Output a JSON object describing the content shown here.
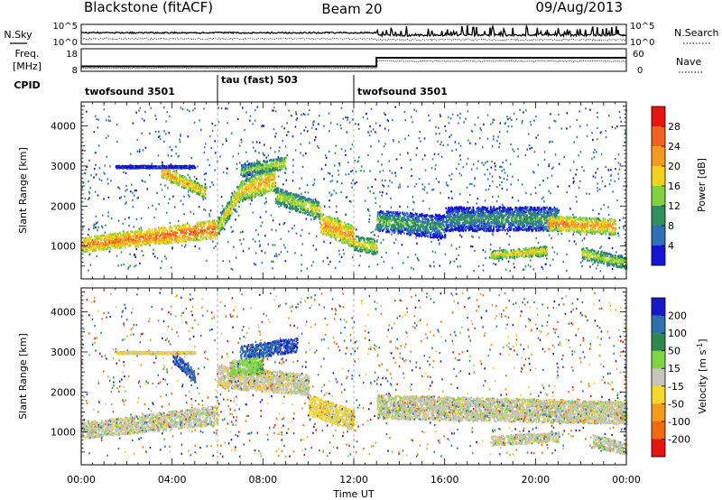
{
  "header": {
    "radar": "Blackstone (fitACF)",
    "beam": "Beam 20",
    "date": "09/Aug/2013"
  },
  "sky_panel": {
    "left_label": "N.Sky",
    "right_label": "N.Search",
    "ticks_left": [
      "10^5",
      "10^0"
    ],
    "ticks_right": [
      "10^5",
      "10^0"
    ]
  },
  "freq_panel": {
    "left_label": "Freq.",
    "units": "[MHz]",
    "right_label": "Nave",
    "ticks_left": [
      "18",
      "8"
    ],
    "ticks_right": [
      "60",
      "0"
    ]
  },
  "cpid": {
    "label": "CPID",
    "segments": [
      {
        "name": "twofsound 3501",
        "start": 0,
        "end": 6
      },
      {
        "name": "tau (fast) 503",
        "start": 6,
        "end": 12
      },
      {
        "name": "twofsound 3501",
        "start": 12,
        "end": 24
      }
    ]
  },
  "chart_data": [
    {
      "type": "heatmap",
      "quantity": "power",
      "ylabel": "Slant Range [km]",
      "xlim": [
        0,
        24
      ],
      "ylim": [
        180,
        4600
      ],
      "yticks": [
        1000,
        2000,
        3000,
        4000
      ],
      "colorbar": {
        "label": "Power [dB]",
        "ticks": [
          4,
          8,
          12,
          16,
          20,
          24,
          28
        ],
        "range": [
          0,
          32
        ]
      },
      "bands": [
        {
          "t": [
            0.0,
            6.0
          ],
          "r0": [
            1050,
            1450
          ],
          "w": [
            180,
            230
          ],
          "v": [
            24,
            26
          ]
        },
        {
          "t": [
            6.0,
            7.0
          ],
          "r0": [
            1500,
            2400
          ],
          "w": [
            220,
            260
          ],
          "v": [
            18,
            20
          ]
        },
        {
          "t": [
            7.0,
            8.5
          ],
          "r0": [
            2400,
            2700
          ],
          "w": [
            260,
            300
          ],
          "v": [
            20,
            22
          ]
        },
        {
          "t": [
            8.5,
            10.5
          ],
          "r0": [
            2300,
            1900
          ],
          "w": [
            200,
            230
          ],
          "v": [
            16,
            18
          ]
        },
        {
          "t": [
            10.5,
            12.0
          ],
          "r0": [
            1600,
            1250
          ],
          "w": [
            250,
            280
          ],
          "v": [
            24,
            22
          ]
        },
        {
          "t": [
            12.0,
            13.0
          ],
          "r0": [
            1100,
            1000
          ],
          "w": [
            180,
            200
          ],
          "v": [
            18,
            18
          ]
        },
        {
          "t": [
            13.0,
            16.0
          ],
          "r0": [
            1650,
            1500
          ],
          "w": [
            250,
            300
          ],
          "v": [
            14,
            10
          ]
        },
        {
          "t": [
            16.0,
            21.0
          ],
          "r0": [
            1700,
            1700
          ],
          "w": [
            300,
            300
          ],
          "v": [
            10,
            12
          ]
        },
        {
          "t": [
            18.0,
            20.5
          ],
          "r0": [
            800,
            900
          ],
          "w": [
            100,
            120
          ],
          "v": [
            20,
            20
          ]
        },
        {
          "t": [
            20.5,
            23.5
          ],
          "r0": [
            1600,
            1500
          ],
          "w": [
            180,
            200
          ],
          "v": [
            24,
            22
          ]
        },
        {
          "t": [
            22.0,
            24.0
          ],
          "r0": [
            850,
            600
          ],
          "w": [
            150,
            150
          ],
          "v": [
            18,
            16
          ]
        },
        {
          "t": [
            3.5,
            5.5
          ],
          "r0": [
            2900,
            2350
          ],
          "w": [
            150,
            150
          ],
          "v": [
            24,
            20
          ]
        },
        {
          "t": [
            7.0,
            9.0
          ],
          "r0": [
            2900,
            3100
          ],
          "w": [
            150,
            150
          ],
          "v": [
            14,
            18
          ]
        },
        {
          "t": [
            1.5,
            5.0
          ],
          "r0": [
            3000,
            3000
          ],
          "w": [
            30,
            30
          ],
          "v": [
            5,
            6
          ]
        }
      ]
    },
    {
      "type": "heatmap",
      "quantity": "velocity",
      "xlabel": "Time UT",
      "ylabel": "Slant Range [km]",
      "xlim": [
        0,
        24
      ],
      "ylim": [
        180,
        4600
      ],
      "xticks": [
        "00:00",
        "04:00",
        "08:00",
        "12:00",
        "16:00",
        "20:00",
        "00:00"
      ],
      "yticks": [
        1000,
        2000,
        3000,
        4000
      ],
      "colorbar": {
        "label": "Velocity [m s^-1]",
        "ticks": [
          "200",
          "100",
          "50",
          "15",
          "-15",
          "-50",
          "-100",
          "-200"
        ]
      },
      "bands": [
        {
          "t": [
            0.0,
            6.0
          ],
          "r0": [
            1050,
            1450
          ],
          "w": [
            200,
            240
          ],
          "v": [
            0,
            0
          ]
        },
        {
          "t": [
            6.0,
            10.0
          ],
          "r0": [
            2400,
            2200
          ],
          "w": [
            280,
            260
          ],
          "v": [
            -10,
            0
          ]
        },
        {
          "t": [
            10.0,
            12.0
          ],
          "r0": [
            1700,
            1300
          ],
          "w": [
            260,
            260
          ],
          "v": [
            -30,
            -20
          ]
        },
        {
          "t": [
            13.0,
            24.0
          ],
          "r0": [
            1650,
            1500
          ],
          "w": [
            300,
            280
          ],
          "v": [
            0,
            0
          ]
        },
        {
          "t": [
            18.0,
            21.0
          ],
          "r0": [
            800,
            900
          ],
          "w": [
            120,
            120
          ],
          "v": [
            0,
            0
          ]
        },
        {
          "t": [
            22.5,
            24.0
          ],
          "r0": [
            800,
            600
          ],
          "w": [
            150,
            150
          ],
          "v": [
            10,
            0
          ]
        },
        {
          "t": [
            7.0,
            9.5
          ],
          "r0": [
            3000,
            3200
          ],
          "w": [
            180,
            180
          ],
          "v": [
            180,
            200
          ]
        },
        {
          "t": [
            4.0,
            5.0
          ],
          "r0": [
            2900,
            2400
          ],
          "w": [
            150,
            150
          ],
          "v": [
            200,
            180
          ]
        },
        {
          "t": [
            6.5,
            8.0
          ],
          "r0": [
            2600,
            2700
          ],
          "w": [
            200,
            200
          ],
          "v": [
            20,
            40
          ]
        },
        {
          "t": [
            1.5,
            5.0
          ],
          "r0": [
            3000,
            3000
          ],
          "w": [
            30,
            30
          ],
          "v": [
            -20,
            -20
          ]
        }
      ]
    }
  ]
}
